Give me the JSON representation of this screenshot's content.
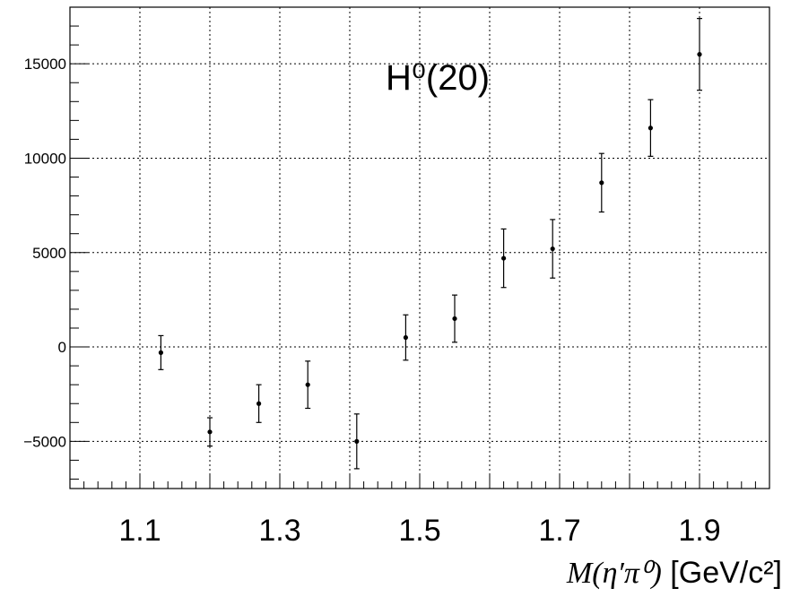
{
  "chart_data": {
    "type": "scatter",
    "title": "H⁰(20)",
    "xlabel_math": "M(η′π⁰)",
    "xlabel_unit": " [GeV/c²]",
    "xlim": [
      1.0,
      2.0
    ],
    "ylim": [
      -7500,
      18000
    ],
    "grid": true,
    "x_ticks": [
      1.1,
      1.3,
      1.5,
      1.7,
      1.9
    ],
    "x_tick_labels": [
      "1.1",
      "1.3",
      "1.5",
      "1.7",
      "1.9"
    ],
    "y_ticks": [
      -5000,
      0,
      5000,
      10000,
      15000
    ],
    "y_tick_labels": [
      "−5000",
      "0",
      "5000",
      "10000",
      "15000"
    ],
    "points": [
      {
        "x": 1.13,
        "y": -300,
        "err": 900
      },
      {
        "x": 1.2,
        "y": -4500,
        "err": 750
      },
      {
        "x": 1.27,
        "y": -3000,
        "err": 1000
      },
      {
        "x": 1.34,
        "y": -2000,
        "err": 1250
      },
      {
        "x": 1.41,
        "y": -5000,
        "err": 1450
      },
      {
        "x": 1.48,
        "y": 500,
        "err": 1200
      },
      {
        "x": 1.55,
        "y": 1500,
        "err": 1250
      },
      {
        "x": 1.62,
        "y": 4700,
        "err": 1550
      },
      {
        "x": 1.69,
        "y": 5200,
        "err": 1550
      },
      {
        "x": 1.76,
        "y": 8700,
        "err": 1550
      },
      {
        "x": 1.83,
        "y": 11600,
        "err": 1500
      },
      {
        "x": 1.9,
        "y": 15500,
        "err": 1900
      }
    ]
  }
}
